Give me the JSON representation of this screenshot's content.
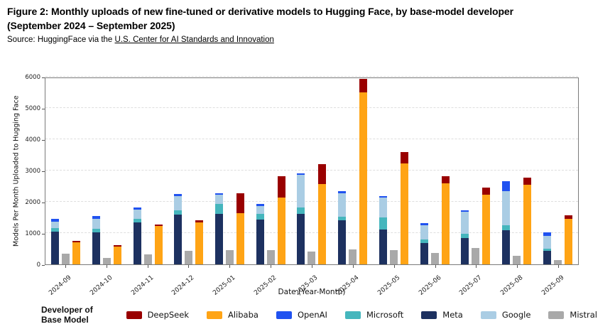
{
  "header": {
    "title_line1": "Figure 2: Monthly uploads of new fine-tuned or derivative models to Hugging Face, by base-model developer",
    "title_line2": "(September 2024 – September 2025)",
    "source_prefix": "Source: HuggingFace via the ",
    "source_link": "U.S. Center for AI Standards and Innovation"
  },
  "chart_data": {
    "type": "bar",
    "title": "",
    "xlabel": "Date (Year-Month)",
    "ylabel": "Models Per Month Uploaded to Hugging Face",
    "ylim": [
      0,
      6000
    ],
    "yticks": [
      0,
      1000,
      2000,
      3000,
      4000,
      5000,
      6000
    ],
    "grid": "horizontal-dashed",
    "legend_title": "Developer of Base Model",
    "legend_position": "bottom",
    "legend_order": [
      "DeepSeek",
      "Alibaba",
      "OpenAI",
      "Microsoft",
      "Meta",
      "Google",
      "Mistral"
    ],
    "categories": [
      "2024-09",
      "2024-10",
      "2024-11",
      "2024-12",
      "2025-01",
      "2025-02",
      "2025-03",
      "2025-04",
      "2025-05",
      "2025-06",
      "2025-07",
      "2025-08",
      "2025-09"
    ],
    "bars_per_month": [
      {
        "stack_order_bottom_to_top": [
          "Meta",
          "Microsoft",
          "Google",
          "OpenAI"
        ]
      },
      {
        "stack_order_bottom_to_top": [
          "Mistral"
        ]
      },
      {
        "stack_order_bottom_to_top": [
          "Alibaba",
          "DeepSeek"
        ]
      }
    ],
    "series": [
      {
        "name": "DeepSeek",
        "color": "#990000",
        "values": [
          55,
          60,
          60,
          55,
          625,
          685,
          635,
          450,
          370,
          225,
          240,
          240,
          115
        ]
      },
      {
        "name": "Alibaba",
        "color": "#FFA415",
        "values": [
          695,
          560,
          1220,
          1345,
          1640,
          2140,
          2565,
          5490,
          3220,
          2600,
          2220,
          2540,
          1455
        ]
      },
      {
        "name": "OpenAI",
        "color": "#2052F0",
        "values": [
          85,
          80,
          65,
          55,
          50,
          55,
          55,
          70,
          55,
          65,
          35,
          320,
          105
        ]
      },
      {
        "name": "Microsoft",
        "color": "#45B6BD",
        "values": [
          110,
          100,
          120,
          120,
          335,
          175,
          205,
          125,
          380,
          105,
          135,
          140,
          60
        ]
      },
      {
        "name": "Meta",
        "color": "#1D3160",
        "values": [
          1050,
          1030,
          1340,
          1600,
          1610,
          1430,
          1605,
          1400,
          1125,
          690,
          850,
          1100,
          440
        ]
      },
      {
        "name": "Google",
        "color": "#AACDE4",
        "values": [
          215,
          330,
          290,
          465,
          290,
          270,
          1055,
          740,
          635,
          450,
          710,
          1100,
          415
        ]
      },
      {
        "name": "Mistral",
        "color": "#A9A9A9",
        "values": [
          340,
          200,
          320,
          440,
          455,
          450,
          420,
          475,
          460,
          360,
          520,
          265,
          130
        ]
      }
    ]
  }
}
